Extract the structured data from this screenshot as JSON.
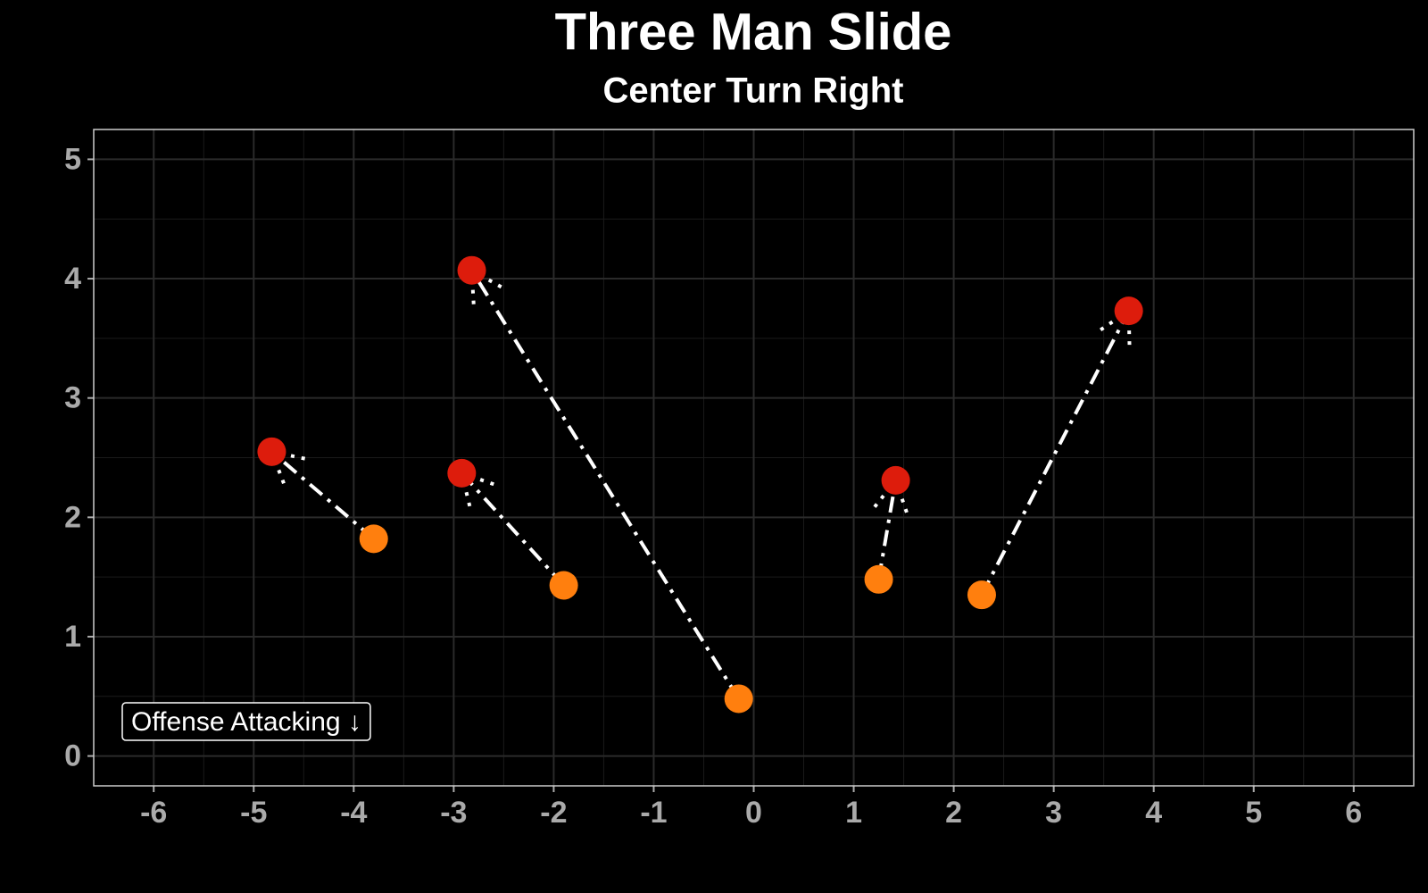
{
  "chart_data": {
    "type": "scatter",
    "title": "Three Man Slide",
    "subtitle": "Center Turn Right",
    "annotation": "Offense Attacking ↓",
    "series": [
      {
        "color": "#ff7f0e",
        "x": [
          -3.8,
          -1.9,
          -0.15,
          1.25,
          2.28
        ],
        "y": [
          1.82,
          1.43,
          0.48,
          1.48,
          1.35
        ]
      },
      {
        "color": "#dd1c0c",
        "x": [
          -4.82,
          -2.92,
          -2.82,
          1.42,
          3.75
        ],
        "y": [
          2.55,
          2.37,
          4.07,
          2.31,
          3.73
        ]
      }
    ],
    "arrow_color": "#ffffff",
    "xlim": [
      -6.6,
      6.6
    ],
    "ylim": [
      -0.25,
      5.25
    ],
    "xticks": [
      -6,
      -5,
      -4,
      -3,
      -2,
      -1,
      0,
      1,
      2,
      3,
      4,
      5,
      6
    ],
    "yticks": [
      0,
      1,
      2,
      3,
      4,
      5
    ],
    "grid": true
  }
}
